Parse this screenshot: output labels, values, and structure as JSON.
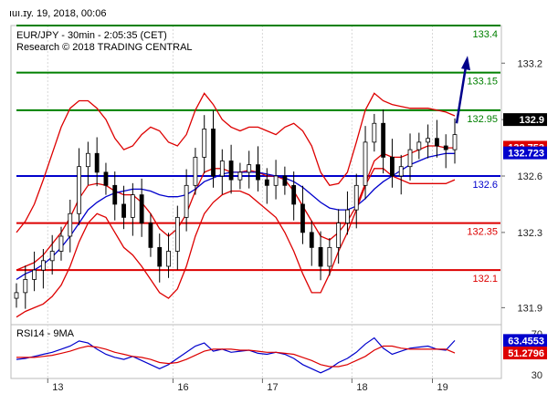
{
  "header": {
    "date_text": "ıuı.ɪy. 19, 2018, 00:06"
  },
  "chart_data": [
    {
      "type": "line",
      "subtype": "candlestick",
      "title": "EUR/JPY - 30min - 2:05:35 (CET)",
      "subtitle": "Research © 2018 TRADING CENTRAL",
      "x_tick_labels": [
        "13",
        "16",
        "17",
        "18",
        "19"
      ],
      "y_tick_labels": [
        "131.9",
        "132.3",
        "132.6",
        "132.9",
        "133.2"
      ],
      "ylim": [
        131.8,
        133.4
      ],
      "y_ticks": [
        131.9,
        132.3,
        132.6,
        132.9,
        133.2
      ],
      "levels": [
        {
          "label": "133.4",
          "value": 133.4,
          "color": "#008000"
        },
        {
          "label": "133.15",
          "value": 133.15,
          "color": "#008000"
        },
        {
          "label": "132.95",
          "value": 132.95,
          "color": "#008000"
        },
        {
          "label": "132.6",
          "value": 132.6,
          "color": "#0000cc"
        },
        {
          "label": "132.35",
          "value": 132.35,
          "color": "#dd0000"
        },
        {
          "label": "132.1",
          "value": 132.1,
          "color": "#dd0000"
        }
      ],
      "price_badges": [
        {
          "label": "132.9",
          "value": 132.9,
          "color": "#000000"
        },
        {
          "label": "132.753",
          "value": 132.753,
          "color": "#dd0000"
        },
        {
          "label": "132.723",
          "value": 132.723,
          "color": "#0000cc"
        }
      ],
      "forecast_arrow": {
        "from": 132.88,
        "to": 133.22,
        "color": "#00008b"
      },
      "series": [
        {
          "values": [
            131.98,
            132.05,
            132.1,
            132.15,
            132.2,
            132.28,
            132.4,
            132.65,
            132.72,
            132.62,
            132.55,
            132.45,
            132.38,
            132.5,
            132.35,
            132.22,
            132.12,
            132.2,
            132.38,
            132.55,
            132.7,
            132.85,
            132.6,
            132.68,
            132.58,
            132.62,
            132.66,
            132.58,
            132.55,
            132.6,
            132.55,
            132.45,
            132.3,
            132.22,
            132.12,
            132.22,
            132.35,
            132.42,
            132.55,
            132.78,
            132.88,
            132.7,
            132.6,
            132.65,
            132.74,
            132.78,
            132.8,
            132.76,
            132.74,
            132.82
          ]
        }
      ],
      "overlays": [
        {
          "color": "#dd0000",
          "values": [
            132.1,
            132.12,
            132.14,
            132.18,
            132.24,
            132.3,
            132.38,
            132.48,
            132.55,
            132.56,
            132.55,
            132.52,
            132.5,
            132.5,
            132.46,
            132.4,
            132.32,
            132.28,
            132.32,
            132.4,
            132.52,
            132.62,
            132.64,
            132.64,
            132.62,
            132.62,
            132.63,
            132.62,
            132.6,
            132.6,
            132.58,
            132.52,
            132.44,
            132.36,
            132.28,
            132.26,
            132.3,
            132.36,
            132.44,
            132.56,
            132.68,
            132.72,
            132.7,
            132.7,
            132.72,
            132.74,
            132.76,
            132.76,
            132.75,
            132.75
          ]
        },
        {
          "color": "#0000cc",
          "values": [
            132.05,
            132.08,
            132.1,
            132.13,
            132.17,
            132.22,
            132.28,
            132.35,
            132.42,
            132.46,
            132.49,
            132.51,
            132.52,
            132.53,
            132.53,
            132.52,
            132.5,
            132.49,
            132.49,
            132.5,
            132.53,
            132.57,
            132.59,
            132.61,
            132.62,
            132.62,
            132.62,
            132.62,
            132.61,
            132.6,
            132.59,
            132.57,
            132.54,
            132.5,
            132.46,
            132.43,
            132.42,
            132.42,
            132.44,
            132.48,
            132.53,
            132.57,
            132.6,
            132.63,
            132.66,
            132.68,
            132.7,
            132.71,
            132.72,
            132.72
          ]
        },
        {
          "color": "#dd0000",
          "values": [
            132.3,
            132.36,
            132.45,
            132.58,
            132.72,
            132.86,
            132.96,
            133.0,
            133.0,
            132.96,
            132.9,
            132.8,
            132.74,
            132.76,
            132.82,
            132.86,
            132.84,
            132.78,
            132.76,
            132.82,
            132.95,
            133.04,
            132.98,
            132.9,
            132.86,
            132.84,
            132.86,
            132.86,
            132.84,
            132.82,
            132.86,
            132.88,
            132.84,
            132.76,
            132.62,
            132.55,
            132.56,
            132.62,
            132.78,
            132.95,
            133.04,
            133.0,
            132.98,
            132.97,
            132.96,
            132.96,
            132.96,
            132.95,
            132.94,
            132.92
          ]
        },
        {
          "color": "#dd0000",
          "values": [
            131.85,
            131.88,
            131.9,
            131.92,
            131.96,
            132.02,
            132.12,
            132.25,
            132.35,
            132.4,
            132.38,
            132.3,
            132.22,
            132.18,
            132.12,
            132.05,
            131.98,
            131.95,
            132.0,
            132.12,
            132.28,
            132.4,
            132.46,
            132.5,
            132.52,
            132.52,
            132.5,
            132.46,
            132.42,
            132.38,
            132.3,
            132.2,
            132.08,
            131.98,
            131.98,
            132.08,
            132.2,
            132.3,
            132.42,
            132.55,
            132.64,
            132.64,
            132.6,
            132.58,
            132.56,
            132.56,
            132.56,
            132.56,
            132.56,
            132.58
          ]
        }
      ]
    },
    {
      "type": "line",
      "title": "RSI14 - 9MA",
      "ylim": [
        30,
        70
      ],
      "y_tick_labels": [
        "70",
        "30"
      ],
      "y_ticks": [
        70,
        30
      ],
      "badges": [
        {
          "label": "63.4553",
          "value": 63.4553,
          "color": "#0000cc"
        },
        {
          "label": "51.2796",
          "value": 51.2796,
          "color": "#dd0000"
        }
      ],
      "series": [
        {
          "color": "#0000cc",
          "values": [
            45,
            46,
            48,
            50,
            52,
            55,
            58,
            63,
            61,
            55,
            50,
            47,
            45,
            48,
            44,
            40,
            36,
            40,
            46,
            52,
            58,
            61,
            53,
            55,
            52,
            53,
            54,
            51,
            50,
            52,
            50,
            46,
            40,
            36,
            32,
            36,
            42,
            46,
            52,
            60,
            66,
            56,
            50,
            53,
            56,
            57,
            58,
            55,
            54,
            63.4553
          ]
        },
        {
          "color": "#dd0000",
          "values": [
            47,
            47,
            47,
            48,
            49,
            51,
            53,
            56,
            58,
            57,
            55,
            52,
            50,
            48,
            47,
            45,
            42,
            41,
            42,
            45,
            49,
            53,
            55,
            55,
            55,
            54,
            54,
            53,
            52,
            52,
            51,
            50,
            47,
            44,
            40,
            38,
            38,
            40,
            44,
            48,
            54,
            58,
            58,
            56,
            55,
            55,
            55,
            55,
            55,
            51.2796
          ]
        }
      ]
    }
  ]
}
